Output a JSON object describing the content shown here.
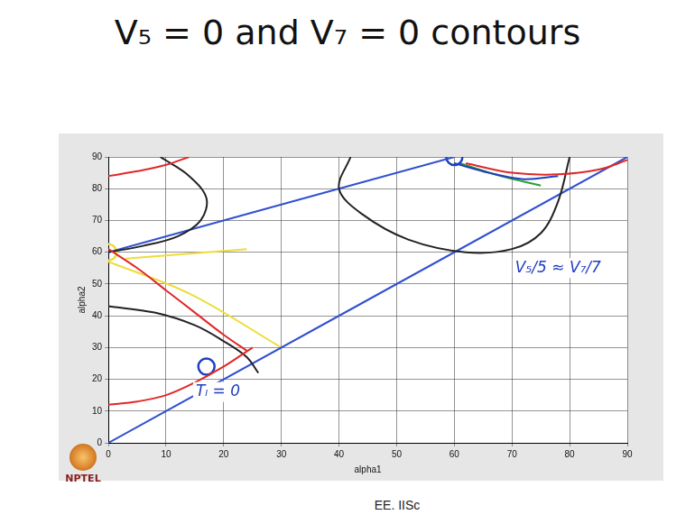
{
  "chart_data": {
    "type": "line",
    "title": "V₅ = 0 and V₇ = 0 contours",
    "x_label": "alpha1",
    "y_label": "alpha2",
    "xlim": [
      0,
      90
    ],
    "ylim": [
      0,
      90
    ],
    "xticks": [
      0,
      10,
      20,
      30,
      40,
      50,
      60,
      70,
      80,
      90
    ],
    "yticks": [
      0,
      10,
      20,
      30,
      40,
      50,
      60,
      70,
      80,
      90
    ],
    "grid": true,
    "series": [
      {
        "color": "#e02828",
        "marker": "none",
        "line_style": "solid",
        "x": [
          0,
          5,
          10,
          14
        ],
        "values": [
          84,
          85.5,
          87.5,
          90
        ]
      },
      {
        "color": "#e02828",
        "marker": "none",
        "line_style": "solid",
        "x": [
          0,
          5,
          10,
          15,
          20,
          24
        ],
        "values": [
          61,
          55,
          48,
          41,
          34,
          29
        ]
      },
      {
        "color": "#e02828",
        "marker": "none",
        "line_style": "solid",
        "x": [
          0,
          5,
          10,
          15,
          20,
          25
        ],
        "values": [
          12,
          13,
          15,
          19,
          24,
          30
        ]
      },
      {
        "color": "#e02828",
        "marker": "none",
        "line_style": "solid",
        "x": [
          62,
          70,
          78,
          85,
          90
        ],
        "values": [
          88,
          85,
          84.5,
          86,
          89
        ]
      },
      {
        "color": "#222222",
        "marker": "none",
        "line_style": "solid",
        "x": [
          9,
          14,
          17,
          16,
          12,
          6,
          0
        ],
        "values": [
          90,
          84,
          77,
          70,
          65,
          62,
          60
        ]
      },
      {
        "color": "#222222",
        "marker": "none",
        "line_style": "solid",
        "x": [
          0,
          8,
          15,
          20,
          24,
          26
        ],
        "values": [
          43,
          41,
          37,
          32,
          27,
          22
        ]
      },
      {
        "color": "#222222",
        "marker": "none",
        "line_style": "solid",
        "x": [
          42,
          40,
          44,
          52,
          62,
          70,
          75,
          78,
          80
        ],
        "values": [
          90,
          80,
          72,
          64,
          60,
          61,
          66,
          76,
          90
        ]
      },
      {
        "color": "#3050d0",
        "marker": "none",
        "line_style": "solid",
        "x": [
          0,
          90
        ],
        "values": [
          0,
          90
        ]
      },
      {
        "color": "#3050d0",
        "marker": "none",
        "line_style": "solid",
        "x": [
          0,
          60
        ],
        "values": [
          60,
          90
        ]
      },
      {
        "color": "#eedc3a",
        "marker": "none",
        "line_style": "solid",
        "x": [
          0,
          14,
          30
        ],
        "values": [
          57,
          47,
          30
        ]
      },
      {
        "color": "#eedc3a",
        "marker": "none",
        "line_style": "solid",
        "x": [
          3,
          24
        ],
        "values": [
          58,
          61
        ]
      },
      {
        "color": "#eedc3a",
        "marker": "circle",
        "line_style": "none",
        "x": [
          0
        ],
        "values": [
          60
        ]
      },
      {
        "color": "#1f3fc0",
        "marker": "circle",
        "line_style": "none",
        "x": [
          60,
          17
        ],
        "values": [
          90,
          24
        ]
      },
      {
        "color": "#1f3fc0",
        "marker": "none",
        "line_style": "solid",
        "x": [
          60,
          66,
          72,
          78
        ],
        "values": [
          88,
          85,
          83,
          84
        ]
      },
      {
        "color": "#2aa02a",
        "marker": "none",
        "line_style": "solid",
        "x": [
          61,
          68,
          75
        ],
        "values": [
          88,
          84,
          81
        ]
      }
    ],
    "annotations": [
      {
        "text": "Tₗ = 0",
        "x": 19,
        "y": 16,
        "color": "#1f3fc0"
      },
      {
        "text": "V₅/5 ≈ V₇/7",
        "x": 78,
        "y": 55,
        "color": "#1f3fc0"
      }
    ]
  },
  "footer": "EE. IISc",
  "logo": "NPTEL"
}
